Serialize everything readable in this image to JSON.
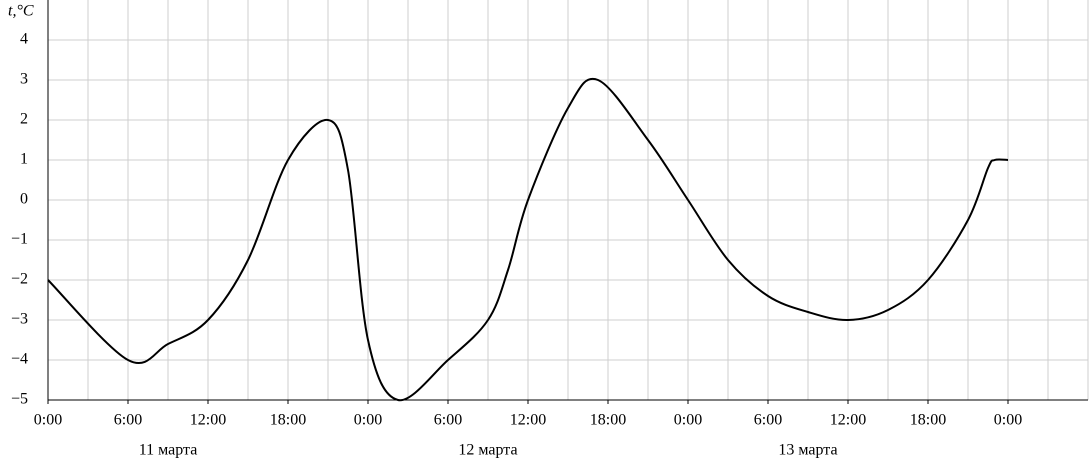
{
  "chart_data": {
    "type": "line",
    "y_label": "t,°C",
    "x": [
      0,
      6,
      9,
      12,
      15,
      18,
      21,
      22.5,
      24,
      26.25,
      30,
      33,
      34.5,
      36,
      39,
      41.25,
      45,
      48,
      51,
      54,
      57,
      60,
      63,
      66,
      69,
      70.5,
      71,
      72
    ],
    "series": [
      {
        "color": "#000000",
        "values": [
          -2,
          -4,
          -3.6,
          -3,
          -1.5,
          1,
          2,
          0.75,
          -3.5,
          -5,
          -4,
          -3,
          -1.75,
          0,
          2.3,
          3,
          1.5,
          0,
          -1.5,
          -2.4,
          -2.8,
          -3,
          -2.75,
          -2,
          -0.5,
          0.8,
          1,
          1
        ]
      }
    ],
    "xlim": [
      0,
      78
    ],
    "ylim": [
      -5,
      5
    ],
    "xticks": [
      {
        "value": 0,
        "label": "0:00"
      },
      {
        "value": 6,
        "label": "6:00"
      },
      {
        "value": 12,
        "label": "12:00"
      },
      {
        "value": 18,
        "label": "18:00"
      },
      {
        "value": 24,
        "label": "0:00"
      },
      {
        "value": 30,
        "label": "6:00"
      },
      {
        "value": 36,
        "label": "12:00"
      },
      {
        "value": 42,
        "label": "18:00"
      },
      {
        "value": 48,
        "label": "0:00"
      },
      {
        "value": 54,
        "label": "6:00"
      },
      {
        "value": 60,
        "label": "12:00"
      },
      {
        "value": 66,
        "label": "18:00"
      },
      {
        "value": 72,
        "label": "0:00"
      }
    ],
    "yticks": [
      {
        "value": -5,
        "label": "−5"
      },
      {
        "value": -4,
        "label": "−4"
      },
      {
        "value": -3,
        "label": "−3"
      },
      {
        "value": -2,
        "label": "−2"
      },
      {
        "value": -1,
        "label": "−1"
      },
      0,
      1,
      2,
      3,
      4
    ],
    "minor_grid_step": 3,
    "day_labels": [
      "11 марта",
      "12 марта",
      "13 марта"
    ],
    "grid": true
  }
}
